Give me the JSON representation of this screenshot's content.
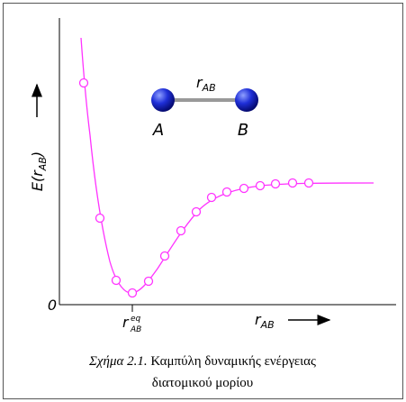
{
  "diagram": {
    "y_axis": {
      "label_start": "E(r",
      "label_sub": "AB",
      "label_end": ")",
      "origin": "0"
    },
    "x_axis": {
      "label": "r",
      "label_sub": "AB",
      "eq_label": "r",
      "eq_sub": "AB",
      "eq_sup": "eq"
    },
    "molecule": {
      "bond_label": "r",
      "bond_sub": "AB",
      "atom_a": "A",
      "atom_b": "B"
    },
    "caption": {
      "number": "Σχήμα 2.1.",
      "line1": "Καμπύλη δυναμικής ενέργειας",
      "line2": "διατομικού μορίου"
    }
  }
}
